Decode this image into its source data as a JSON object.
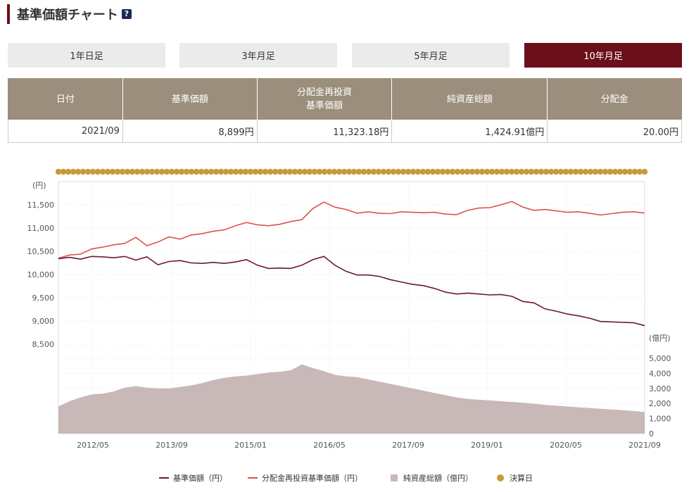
{
  "header": {
    "title": "基準価額チャート",
    "help_label": "?"
  },
  "tabs": [
    {
      "label": "1年日足",
      "active": false
    },
    {
      "label": "3年月足",
      "active": false
    },
    {
      "label": "5年月足",
      "active": false
    },
    {
      "label": "10年月足",
      "active": true
    }
  ],
  "table": {
    "headers": [
      "日付",
      "基準価額",
      "分配金再投資\n基準価額",
      "純資産総額",
      "分配金"
    ],
    "row": [
      "2021/09",
      "8,899円",
      "11,323.18円",
      "1,424.91億円",
      "20.00円"
    ]
  },
  "chart_data": {
    "type": "line",
    "y_unit_left": "(円)",
    "y_unit_right": "(億円)",
    "ylim_left": [
      8500,
      12000
    ],
    "yticks_left": [
      "11,500",
      "11,000",
      "10,500",
      "10,000",
      "9,500",
      "9,000",
      "8,500"
    ],
    "ylim_right": [
      0,
      6000
    ],
    "yticks_right": [
      "5,000",
      "4,000",
      "3,000",
      "2,000",
      "1,000",
      "0"
    ],
    "x_ticks": [
      "2012/05",
      "2013/09",
      "2015/01",
      "2016/05",
      "2017/09",
      "2019/01",
      "2020/05",
      "2021/09"
    ],
    "x_start": "2011/10",
    "x_end": "2021/09",
    "colors": {
      "nav": "#6b1a2a",
      "reinvested": "#d9534f",
      "assets": "#c9b8b8",
      "settlement": "#c9993a"
    },
    "legend": [
      {
        "label": "基準価額（円）",
        "type": "line",
        "color": "#6b1a2a"
      },
      {
        "label": "分配金再投資基準価額（円）",
        "type": "line",
        "color": "#d9534f"
      },
      {
        "label": "純資産総額（億円）",
        "type": "area",
        "color": "#c9b8b8"
      },
      {
        "label": "決算日",
        "type": "dot",
        "color": "#c9993a"
      }
    ],
    "settlement_dots_count": 120,
    "series": [
      {
        "name": "基準価額（円）",
        "points": [
          [
            0,
            10340
          ],
          [
            6,
            10370
          ],
          [
            12,
            10330
          ],
          [
            18,
            10390
          ],
          [
            24,
            10380
          ],
          [
            30,
            10360
          ],
          [
            36,
            10390
          ],
          [
            42,
            10310
          ],
          [
            48,
            10380
          ],
          [
            54,
            10210
          ],
          [
            60,
            10280
          ],
          [
            66,
            10300
          ],
          [
            72,
            10250
          ],
          [
            78,
            10240
          ],
          [
            84,
            10260
          ],
          [
            90,
            10240
          ],
          [
            96,
            10270
          ],
          [
            102,
            10320
          ],
          [
            108,
            10200
          ],
          [
            114,
            10130
          ],
          [
            120,
            10140
          ],
          [
            126,
            10130
          ],
          [
            132,
            10200
          ],
          [
            138,
            10320
          ],
          [
            144,
            10390
          ],
          [
            150,
            10200
          ],
          [
            156,
            10070
          ],
          [
            162,
            9990
          ],
          [
            168,
            9990
          ],
          [
            174,
            9960
          ],
          [
            180,
            9890
          ],
          [
            186,
            9840
          ],
          [
            192,
            9790
          ],
          [
            198,
            9760
          ],
          [
            204,
            9700
          ],
          [
            210,
            9620
          ],
          [
            216,
            9580
          ],
          [
            222,
            9600
          ],
          [
            228,
            9580
          ],
          [
            234,
            9560
          ],
          [
            240,
            9570
          ],
          [
            246,
            9530
          ],
          [
            252,
            9420
          ],
          [
            258,
            9390
          ],
          [
            264,
            9260
          ],
          [
            270,
            9210
          ],
          [
            276,
            9150
          ],
          [
            282,
            9110
          ],
          [
            288,
            9060
          ],
          [
            294,
            8990
          ],
          [
            300,
            8980
          ],
          [
            306,
            8970
          ],
          [
            312,
            8960
          ],
          [
            318,
            8899
          ]
        ]
      },
      {
        "name": "分配金再投資基準価額（円）",
        "points": [
          [
            0,
            10350
          ],
          [
            6,
            10420
          ],
          [
            12,
            10440
          ],
          [
            18,
            10550
          ],
          [
            24,
            10590
          ],
          [
            30,
            10640
          ],
          [
            36,
            10670
          ],
          [
            42,
            10800
          ],
          [
            48,
            10620
          ],
          [
            54,
            10700
          ],
          [
            60,
            10810
          ],
          [
            66,
            10760
          ],
          [
            72,
            10850
          ],
          [
            78,
            10880
          ],
          [
            84,
            10930
          ],
          [
            90,
            10960
          ],
          [
            96,
            11050
          ],
          [
            102,
            11120
          ],
          [
            108,
            11070
          ],
          [
            114,
            11050
          ],
          [
            120,
            11080
          ],
          [
            126,
            11140
          ],
          [
            132,
            11180
          ],
          [
            138,
            11420
          ],
          [
            144,
            11560
          ],
          [
            150,
            11450
          ],
          [
            156,
            11400
          ],
          [
            162,
            11320
          ],
          [
            168,
            11350
          ],
          [
            174,
            11320
          ],
          [
            180,
            11310
          ],
          [
            186,
            11350
          ],
          [
            192,
            11340
          ],
          [
            198,
            11330
          ],
          [
            204,
            11340
          ],
          [
            210,
            11300
          ],
          [
            216,
            11290
          ],
          [
            222,
            11380
          ],
          [
            228,
            11430
          ],
          [
            234,
            11440
          ],
          [
            240,
            11500
          ],
          [
            246,
            11570
          ],
          [
            252,
            11450
          ],
          [
            258,
            11380
          ],
          [
            264,
            11400
          ],
          [
            270,
            11370
          ],
          [
            276,
            11340
          ],
          [
            282,
            11350
          ],
          [
            288,
            11320
          ],
          [
            294,
            11280
          ],
          [
            300,
            11310
          ],
          [
            306,
            11340
          ],
          [
            312,
            11350
          ],
          [
            318,
            11323
          ]
        ]
      },
      {
        "name": "純資産総額（億円）",
        "points": [
          [
            0,
            1800
          ],
          [
            6,
            2150
          ],
          [
            12,
            2400
          ],
          [
            18,
            2600
          ],
          [
            24,
            2650
          ],
          [
            30,
            2800
          ],
          [
            36,
            3050
          ],
          [
            42,
            3150
          ],
          [
            48,
            3050
          ],
          [
            54,
            3000
          ],
          [
            60,
            3000
          ],
          [
            66,
            3100
          ],
          [
            72,
            3200
          ],
          [
            78,
            3350
          ],
          [
            84,
            3550
          ],
          [
            90,
            3700
          ],
          [
            96,
            3800
          ],
          [
            102,
            3850
          ],
          [
            108,
            3950
          ],
          [
            114,
            4050
          ],
          [
            120,
            4100
          ],
          [
            126,
            4200
          ],
          [
            132,
            4600
          ],
          [
            138,
            4350
          ],
          [
            144,
            4150
          ],
          [
            150,
            3900
          ],
          [
            156,
            3800
          ],
          [
            162,
            3750
          ],
          [
            168,
            3600
          ],
          [
            174,
            3450
          ],
          [
            180,
            3300
          ],
          [
            186,
            3150
          ],
          [
            192,
            3000
          ],
          [
            198,
            2850
          ],
          [
            204,
            2700
          ],
          [
            210,
            2550
          ],
          [
            216,
            2400
          ],
          [
            222,
            2300
          ],
          [
            228,
            2250
          ],
          [
            234,
            2200
          ],
          [
            240,
            2150
          ],
          [
            246,
            2100
          ],
          [
            252,
            2050
          ],
          [
            258,
            1980
          ],
          [
            264,
            1900
          ],
          [
            270,
            1850
          ],
          [
            276,
            1800
          ],
          [
            282,
            1750
          ],
          [
            288,
            1700
          ],
          [
            294,
            1650
          ],
          [
            300,
            1600
          ],
          [
            306,
            1550
          ],
          [
            312,
            1500
          ],
          [
            318,
            1425
          ]
        ]
      }
    ]
  }
}
